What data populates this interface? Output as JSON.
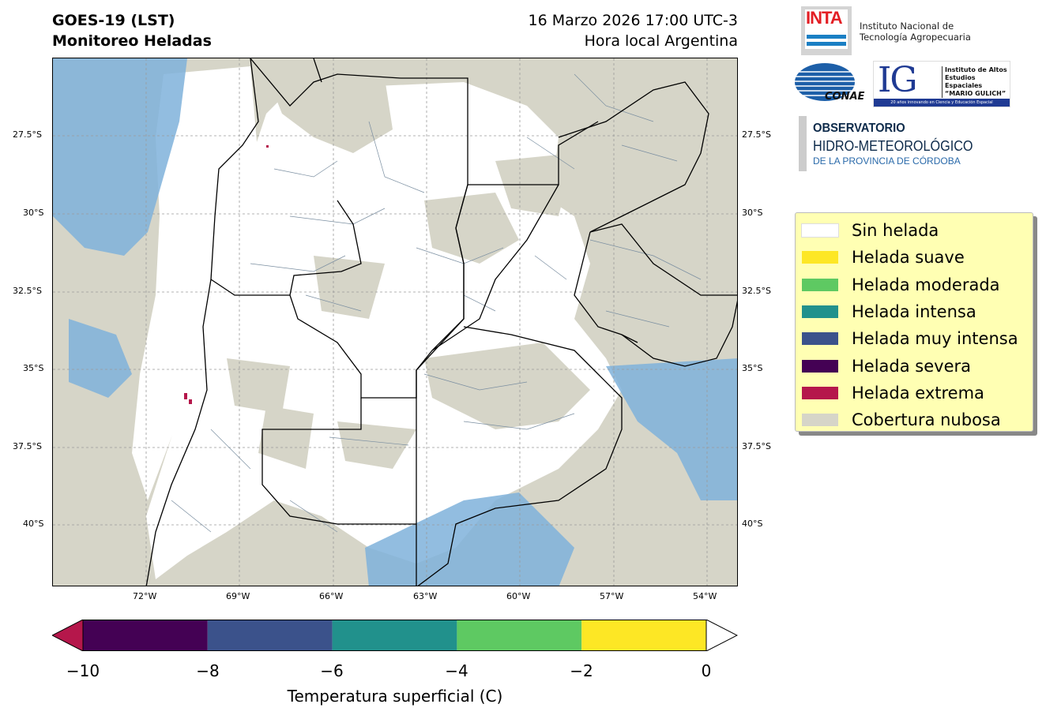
{
  "header": {
    "title_line1": "GOES-19 (LST)",
    "title_line2": "Monitoreo Heladas",
    "datetime": "16 Marzo 2026 17:00 UTC-3",
    "timezone_note": "Hora local Argentina"
  },
  "map": {
    "region": "Argentina",
    "lat_ticks": [
      {
        "label": "27.5°S",
        "lat": -27.5
      },
      {
        "label": "30°S",
        "lat": -30
      },
      {
        "label": "32.5°S",
        "lat": -32.5
      },
      {
        "label": "35°S",
        "lat": -35
      },
      {
        "label": "37.5°S",
        "lat": -37.5
      },
      {
        "label": "40°S",
        "lat": -40
      }
    ],
    "lon_ticks": [
      {
        "label": "72°W",
        "lon": -72
      },
      {
        "label": "69°W",
        "lon": -69
      },
      {
        "label": "66°W",
        "lon": -66
      },
      {
        "label": "63°W",
        "lon": -63
      },
      {
        "label": "60°W",
        "lon": -60
      },
      {
        "label": "57°W",
        "lon": -57
      },
      {
        "label": "54°W",
        "lon": -54
      }
    ],
    "extent": {
      "lon_min": -75,
      "lon_max": -53,
      "lat_min": -42,
      "lat_max": -25
    }
  },
  "legend": {
    "items": [
      {
        "label": "Sin helada",
        "color": "#ffffff"
      },
      {
        "label": "Helada suave",
        "color": "#fde725"
      },
      {
        "label": "Helada moderada",
        "color": "#5ec962"
      },
      {
        "label": "Helada intensa",
        "color": "#21918c"
      },
      {
        "label": "Helada muy intensa",
        "color": "#3b528b"
      },
      {
        "label": "Helada severa",
        "color": "#440154"
      },
      {
        "label": "Helada extrema",
        "color": "#b5174b"
      },
      {
        "label": "Cobertura nubosa",
        "color": "#d6d5c8"
      }
    ]
  },
  "colorbar": {
    "label": "Temperatura superficial (C)",
    "ticks": [
      "−10",
      "−8",
      "−6",
      "−4",
      "−2",
      "0"
    ],
    "tick_values": [
      -10,
      -8,
      -6,
      -4,
      -2,
      0
    ],
    "segments": [
      {
        "from": -10,
        "to": -8,
        "color": "#440154"
      },
      {
        "from": -8,
        "to": -6,
        "color": "#3b528b"
      },
      {
        "from": -6,
        "to": -4,
        "color": "#21918c"
      },
      {
        "from": -4,
        "to": -2,
        "color": "#5ec962"
      },
      {
        "from": -2,
        "to": 0,
        "color": "#fde725"
      }
    ],
    "under_color": "#b5174b",
    "over_color": "#ffffff"
  },
  "logos": {
    "inta_word": "INTA",
    "inta_line1": "Instituto Nacional de",
    "inta_line2": "Tecnología Agropecuaria",
    "conae": "CONAE",
    "ig_letters": "IG",
    "ig_line1": "Instituto de Altos",
    "ig_line2": "Estudios Espaciales",
    "ig_line3": "“MARIO GULICH”",
    "ig_band": "20 años innovando en Ciencia y Educación Espacial",
    "obs_line1": "OBSERVATORIO",
    "obs_line2": "HIDRO-METEOROLÓGICO",
    "obs_line3": "DE LA PROVINCIA DE CÓRDOBA"
  }
}
